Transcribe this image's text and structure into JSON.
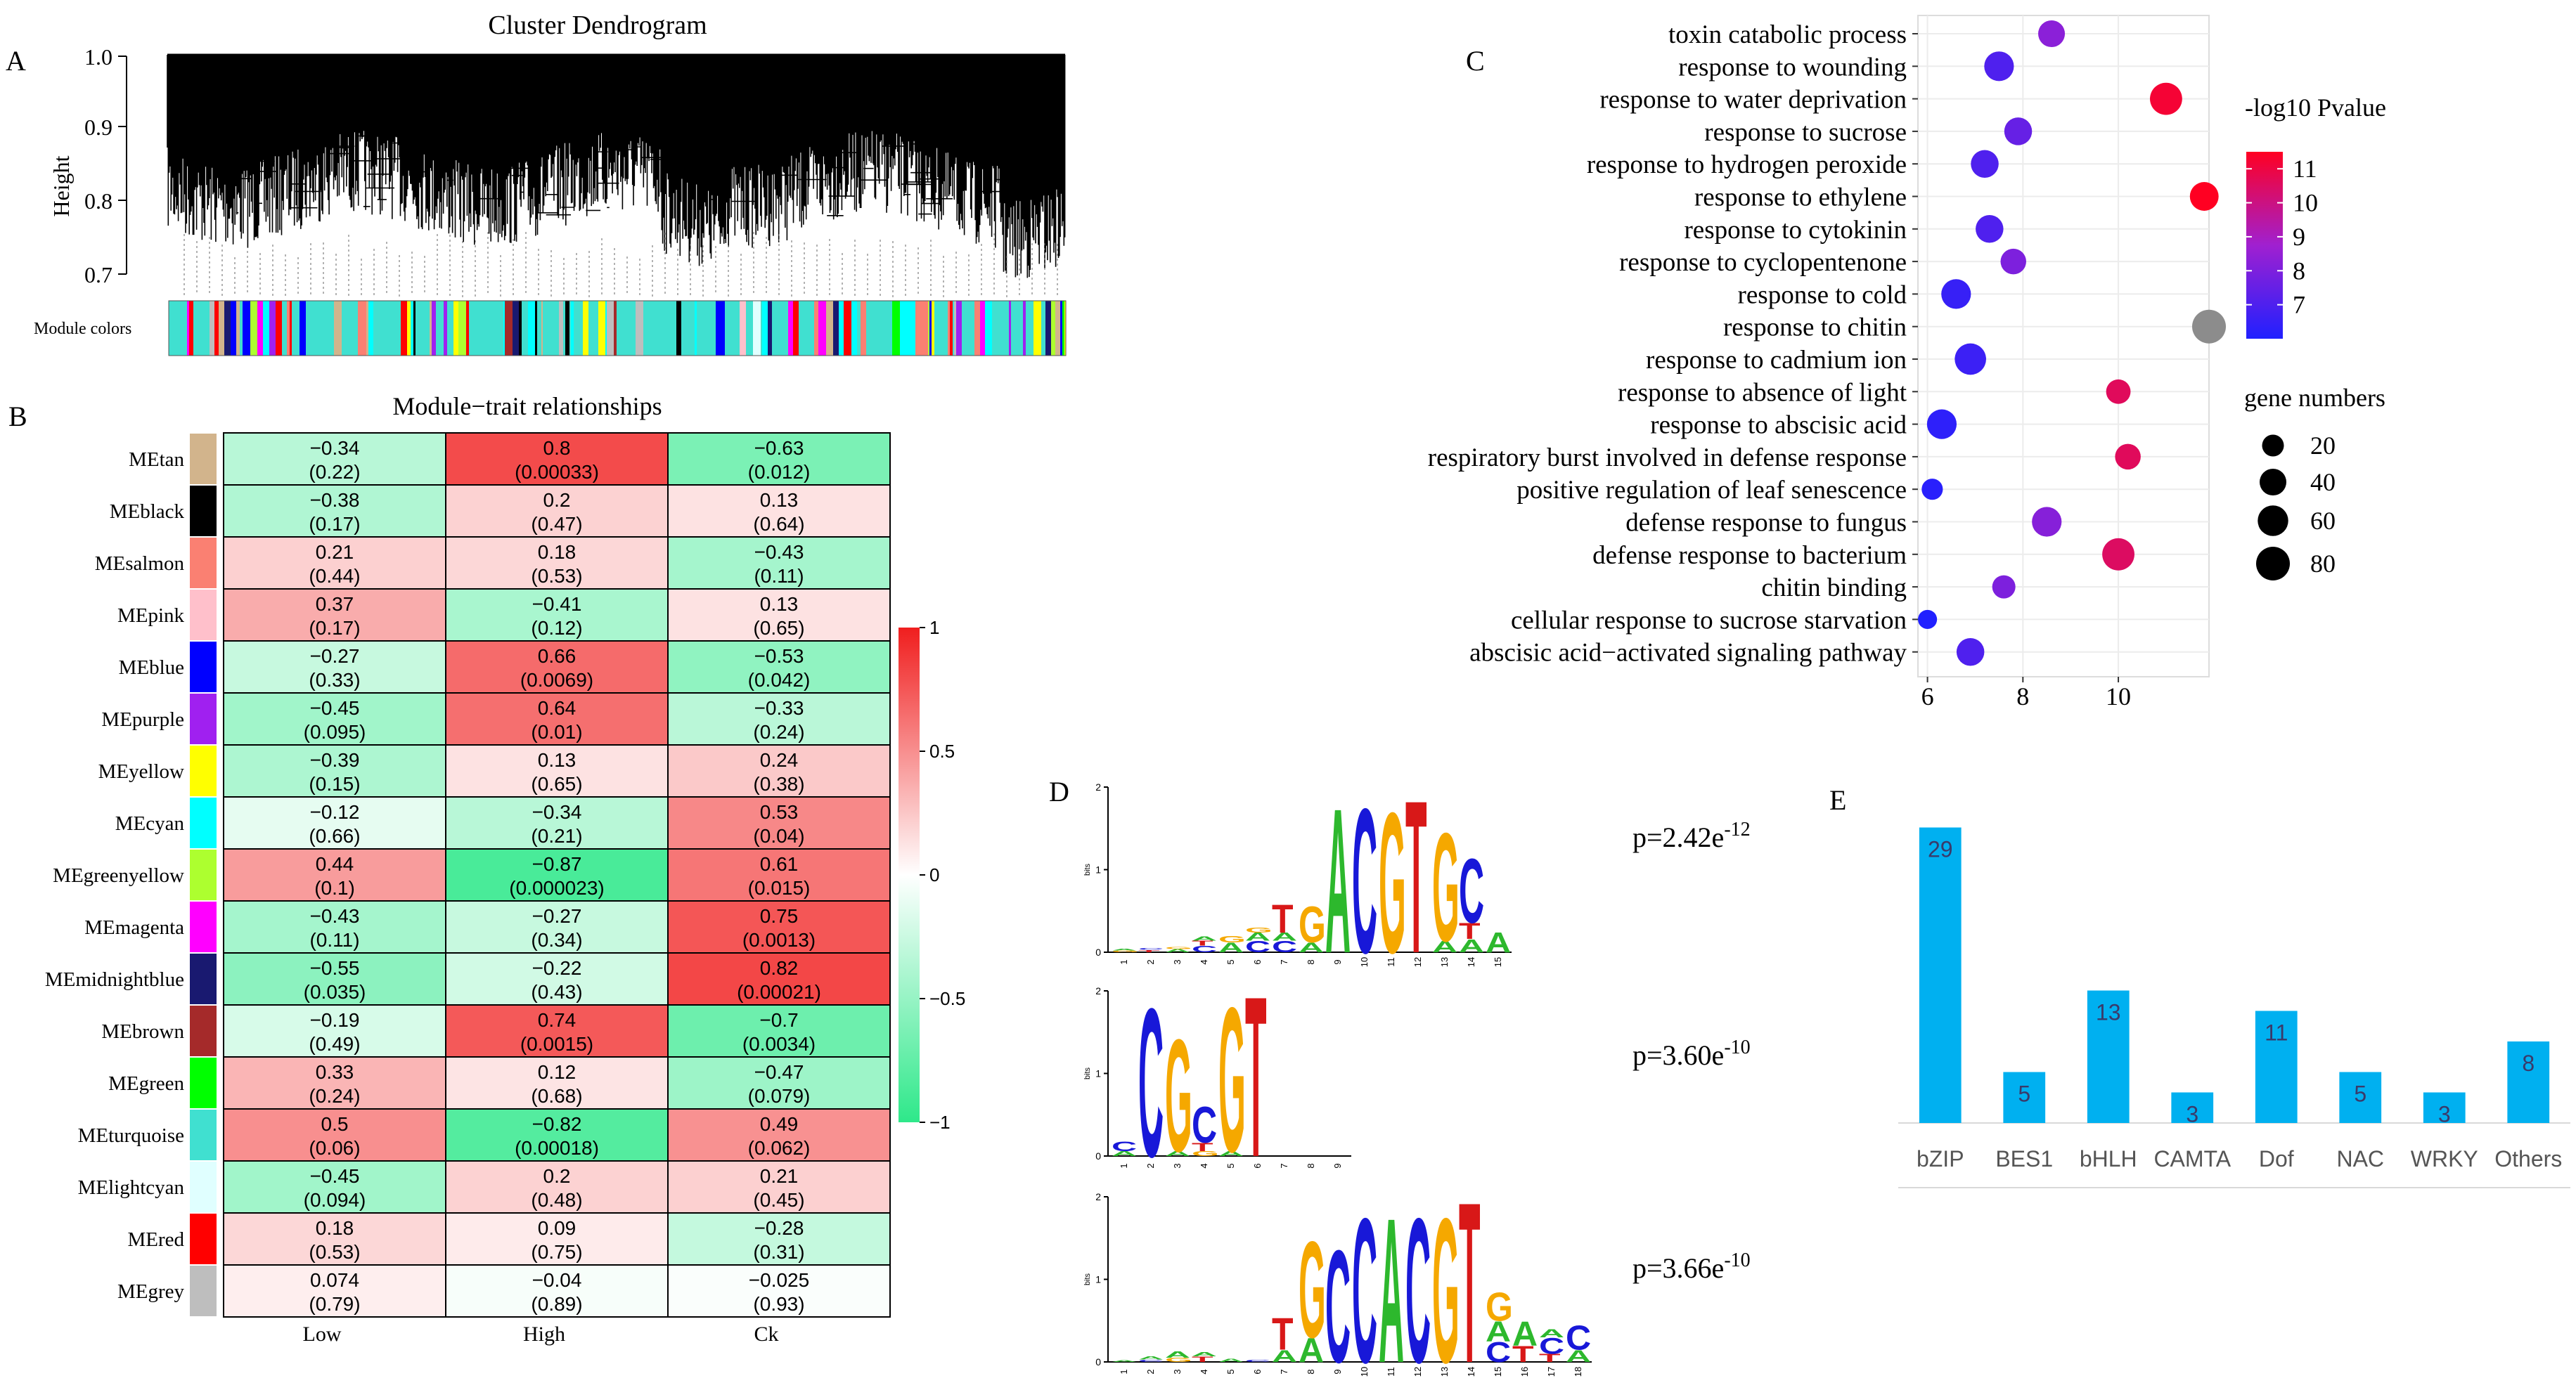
{
  "panels": {
    "a": {
      "label": "A",
      "title": "Cluster Dendrogram",
      "ylabel": "Height",
      "yticks": [
        "1.0",
        "0.9",
        "0.8",
        "0.7"
      ],
      "module_colors_label": "Module colors"
    },
    "b": {
      "label": "B",
      "title": "Module−trait relationships"
    },
    "c": {
      "label": "C",
      "legend_color_title": "-log10 Pvalue",
      "legend_size_title": "gene numbers"
    },
    "d": {
      "label": "D"
    },
    "e": {
      "label": "E"
    }
  },
  "colors": {
    "heat_low": "#2ee88a",
    "heat_mid": "#ffffff",
    "heat_high": "#f01e1e",
    "dot_low": "#2020ff",
    "dot_high": "#ff0022",
    "dot_grey": "#8c8c8c",
    "bar": "#00b0f0",
    "bar_label": "#3a3a6a",
    "dna_A": "#2db82d",
    "dna_C": "#1818d8",
    "dna_G": "#f5a800",
    "dna_T": "#d81818"
  },
  "chart_data": [
    {
      "type": "heatmap",
      "title": "Module−trait relationships",
      "columns": [
        "Low",
        "High",
        "Ck"
      ],
      "rows": [
        {
          "name": "MEtan",
          "color": "#d2b48c",
          "values": [
            "−0.34",
            "0.8",
            "−0.63"
          ],
          "numeric": [
            -0.34,
            0.8,
            -0.63
          ],
          "pvalues": [
            "(0.22)",
            "(0.00033)",
            "(0.012)"
          ]
        },
        {
          "name": "MEblack",
          "color": "#000000",
          "values": [
            "−0.38",
            "0.2",
            "0.13"
          ],
          "numeric": [
            -0.38,
            0.2,
            0.13
          ],
          "pvalues": [
            "(0.17)",
            "(0.47)",
            "(0.64)"
          ]
        },
        {
          "name": "MEsalmon",
          "color": "#fa8072",
          "values": [
            "0.21",
            "0.18",
            "−0.43"
          ],
          "numeric": [
            0.21,
            0.18,
            -0.43
          ],
          "pvalues": [
            "(0.44)",
            "(0.53)",
            "(0.11)"
          ]
        },
        {
          "name": "MEpink",
          "color": "#ffc0cb",
          "values": [
            "0.37",
            "−0.41",
            "0.13"
          ],
          "numeric": [
            0.37,
            -0.41,
            0.13
          ],
          "pvalues": [
            "(0.17)",
            "(0.12)",
            "(0.65)"
          ]
        },
        {
          "name": "MEblue",
          "color": "#0000ff",
          "values": [
            "−0.27",
            "0.66",
            "−0.53"
          ],
          "numeric": [
            -0.27,
            0.66,
            -0.53
          ],
          "pvalues": [
            "(0.33)",
            "(0.0069)",
            "(0.042)"
          ]
        },
        {
          "name": "MEpurple",
          "color": "#a020f0",
          "values": [
            "−0.45",
            "0.64",
            "−0.33"
          ],
          "numeric": [
            -0.45,
            0.64,
            -0.33
          ],
          "pvalues": [
            "(0.095)",
            "(0.01)",
            "(0.24)"
          ]
        },
        {
          "name": "MEyellow",
          "color": "#ffff00",
          "values": [
            "−0.39",
            "0.13",
            "0.24"
          ],
          "numeric": [
            -0.39,
            0.13,
            0.24
          ],
          "pvalues": [
            "(0.15)",
            "(0.65)",
            "(0.38)"
          ]
        },
        {
          "name": "MEcyan",
          "color": "#00ffff",
          "values": [
            "−0.12",
            "−0.34",
            "0.53"
          ],
          "numeric": [
            -0.12,
            -0.34,
            0.53
          ],
          "pvalues": [
            "(0.66)",
            "(0.21)",
            "(0.04)"
          ]
        },
        {
          "name": "MEgreenyellow",
          "color": "#adff2f",
          "values": [
            "0.44",
            "−0.87",
            "0.61"
          ],
          "numeric": [
            0.44,
            -0.87,
            0.61
          ],
          "pvalues": [
            "(0.1)",
            "(0.000023)",
            "(0.015)"
          ]
        },
        {
          "name": "MEmagenta",
          "color": "#ff00ff",
          "values": [
            "−0.43",
            "−0.27",
            "0.75"
          ],
          "numeric": [
            -0.43,
            -0.27,
            0.75
          ],
          "pvalues": [
            "(0.11)",
            "(0.34)",
            "(0.0013)"
          ]
        },
        {
          "name": "MEmidnightblue",
          "color": "#191970",
          "values": [
            "−0.55",
            "−0.22",
            "0.82"
          ],
          "numeric": [
            -0.55,
            -0.22,
            0.82
          ],
          "pvalues": [
            "(0.035)",
            "(0.43)",
            "(0.00021)"
          ]
        },
        {
          "name": "MEbrown",
          "color": "#a52a2a",
          "values": [
            "−0.19",
            "0.74",
            "−0.7"
          ],
          "numeric": [
            -0.19,
            0.74,
            -0.7
          ],
          "pvalues": [
            "(0.49)",
            "(0.0015)",
            "(0.0034)"
          ]
        },
        {
          "name": "MEgreen",
          "color": "#00ff00",
          "values": [
            "0.33",
            "0.12",
            "−0.47"
          ],
          "numeric": [
            0.33,
            0.12,
            -0.47
          ],
          "pvalues": [
            "(0.24)",
            "(0.68)",
            "(0.079)"
          ]
        },
        {
          "name": "MEturquoise",
          "color": "#40e0d0",
          "values": [
            "0.5",
            "−0.82",
            "0.49"
          ],
          "numeric": [
            0.5,
            -0.82,
            0.49
          ],
          "pvalues": [
            "(0.06)",
            "(0.00018)",
            "(0.062)"
          ]
        },
        {
          "name": "MElightcyan",
          "color": "#e0ffff",
          "values": [
            "−0.45",
            "0.2",
            "0.21"
          ],
          "numeric": [
            -0.45,
            0.2,
            0.21
          ],
          "pvalues": [
            "(0.094)",
            "(0.48)",
            "(0.45)"
          ]
        },
        {
          "name": "MEred",
          "color": "#ff0000",
          "values": [
            "0.18",
            "0.09",
            "−0.28"
          ],
          "numeric": [
            0.18,
            0.09,
            -0.28
          ],
          "pvalues": [
            "(0.53)",
            "(0.75)",
            "(0.31)"
          ]
        },
        {
          "name": "MEgrey",
          "color": "#bebebe",
          "values": [
            "0.074",
            "−0.04",
            "−0.025"
          ],
          "numeric": [
            0.074,
            -0.04,
            -0.025
          ],
          "pvalues": [
            "(0.79)",
            "(0.89)",
            "(0.93)"
          ]
        }
      ],
      "colorbar": {
        "range": [
          -1,
          1
        ],
        "ticks": [
          "1",
          "0.5",
          "0",
          "−0.5",
          "−1"
        ]
      }
    },
    {
      "type": "scatter",
      "subtype": "dot_plot",
      "categories": [
        "toxin catabolic process",
        "response to wounding",
        "response to water deprivation",
        "response to sucrose",
        "response to hydrogen peroxide",
        "response to ethylene",
        "response to cytokinin",
        "response to cyclopentenone",
        "response to cold",
        "response to chitin",
        "response to cadmium ion",
        "response to absence of light",
        "response to abscisic acid",
        "respiratory burst involved in defense response",
        "positive regulation of leaf senescence",
        "defense response to fungus",
        "defense response to bacterium",
        "chitin binding",
        "cellular response to sucrose starvation",
        "abscisic acid−activated signaling pathway"
      ],
      "x": [
        8.6,
        7.5,
        11.0,
        7.9,
        7.2,
        11.8,
        7.3,
        7.8,
        6.6,
        11.9,
        6.9,
        10.0,
        6.3,
        10.2,
        6.1,
        8.5,
        10.0,
        7.6,
        6.0,
        6.9
      ],
      "size": [
        40,
        55,
        70,
        45,
        45,
        50,
        45,
        35,
        55,
        80,
        65,
        30,
        55,
        35,
        18,
        55,
        70,
        25,
        12,
        45
      ],
      "color_value": [
        8.3,
        7.0,
        11.2,
        7.5,
        7.0,
        11.6,
        7.0,
        8.0,
        6.5,
        null,
        6.6,
        10.6,
        6.3,
        10.6,
        6.2,
        8.2,
        10.5,
        8.0,
        6.0,
        7.0
      ],
      "xlim": [
        5.8,
        11.9
      ],
      "xticks": [
        "6",
        "8",
        "10"
      ],
      "xtick_values": [
        6,
        8,
        10
      ],
      "color_legend": {
        "title": "-log10 Pvalue",
        "range": [
          6,
          11.5
        ],
        "ticks": [
          "11",
          "10",
          "9",
          "8",
          "7"
        ],
        "tick_values": [
          11,
          10,
          9,
          8,
          7
        ]
      },
      "size_legend": {
        "title": "gene numbers",
        "ticks": [
          "20",
          "40",
          "60",
          "80"
        ],
        "tick_values": [
          20,
          40,
          60,
          80
        ]
      }
    },
    {
      "type": "other",
      "subtype": "sequence_logo",
      "ylabel": "bits",
      "motifs": [
        {
          "pvalue_base": "p=2.42e",
          "pvalue_exp": "-12",
          "yticks": [
            "2",
            "1",
            "0"
          ],
          "positions": [
            "1",
            "2",
            "3",
            "4",
            "5",
            "6",
            "7",
            "8",
            "9",
            "10",
            "11",
            "12",
            "13",
            "14",
            "15"
          ],
          "columns": [
            [
              [
                "G",
                0.02
              ],
              [
                "A",
                0.02
              ]
            ],
            [
              [
                "T",
                0.03
              ],
              [
                "C",
                0.02
              ]
            ],
            [
              [
                "A",
                0.04
              ],
              [
                "G",
                0.03
              ]
            ],
            [
              [
                "C",
                0.08
              ],
              [
                "T",
                0.06
              ],
              [
                "A",
                0.05
              ]
            ],
            [
              [
                "A",
                0.12
              ],
              [
                "G",
                0.08
              ]
            ],
            [
              [
                "C",
                0.14
              ],
              [
                "A",
                0.1
              ],
              [
                "G",
                0.06
              ]
            ],
            [
              [
                "C",
                0.14
              ],
              [
                "A",
                0.1
              ],
              [
                "T",
                0.35
              ]
            ],
            [
              [
                "A",
                0.12
              ],
              [
                "G",
                0.45
              ]
            ],
            [
              [
                "A",
                1.8
              ]
            ],
            [
              [
                "C",
                1.8
              ]
            ],
            [
              [
                "G",
                1.75
              ]
            ],
            [
              [
                "T",
                1.9
              ]
            ],
            [
              [
                "A",
                0.14
              ],
              [
                "G",
                1.35
              ]
            ],
            [
              [
                "A",
                0.16
              ],
              [
                "T",
                0.2
              ],
              [
                "C",
                0.8
              ]
            ],
            [
              [
                "A",
                0.25
              ]
            ]
          ]
        },
        {
          "pvalue_base": "p=3.60e",
          "pvalue_exp": "-10",
          "yticks": [
            "2",
            "1",
            "0"
          ],
          "positions": [
            "1",
            "2",
            "3",
            "4",
            "5",
            "6",
            "7",
            "8",
            "9"
          ],
          "columns": [
            [
              [
                "A",
                0.06
              ],
              [
                "C",
                0.12
              ]
            ],
            [
              [
                "C",
                1.85
              ]
            ],
            [
              [
                "A",
                0.06
              ],
              [
                "G",
                1.4
              ]
            ],
            [
              [
                "G",
                0.06
              ],
              [
                "T",
                0.1
              ],
              [
                "C",
                0.45
              ]
            ],
            [
              [
                "A",
                0.06
              ],
              [
                "G",
                1.8
              ]
            ],
            [
              [
                "T",
                2.0
              ]
            ],
            [],
            [],
            []
          ]
        },
        {
          "pvalue_base": "p=3.66e",
          "pvalue_exp": "-10",
          "yticks": [
            "2",
            "1",
            "0"
          ],
          "positions": [
            "1",
            "2",
            "3",
            "4",
            "5",
            "6",
            "7",
            "8",
            "9",
            "10",
            "11",
            "12",
            "13",
            "14",
            "15",
            "16",
            "17",
            "18"
          ],
          "columns": [
            [
              [
                "A",
                0.02
              ]
            ],
            [
              [
                "C",
                0.03
              ],
              [
                "A",
                0.04
              ]
            ],
            [
              [
                "G",
                0.05
              ],
              [
                "A",
                0.08
              ]
            ],
            [
              [
                "T",
                0.07
              ],
              [
                "A",
                0.05
              ]
            ],
            [
              [
                "A",
                0.04
              ]
            ],
            [
              [
                "C",
                0.03
              ]
            ],
            [
              [
                "A",
                0.15
              ],
              [
                "T",
                0.4
              ]
            ],
            [
              [
                "A",
                0.3
              ],
              [
                "G",
                1.2
              ]
            ],
            [
              [
                "C",
                1.4
              ]
            ],
            [
              [
                "C",
                1.8
              ]
            ],
            [
              [
                "A",
                1.8
              ]
            ],
            [
              [
                "C",
                1.8
              ]
            ],
            [
              [
                "G",
                1.8
              ]
            ],
            [
              [
                "T",
                2.0
              ]
            ],
            [
              [
                "C",
                0.25
              ],
              [
                "A",
                0.25
              ],
              [
                "G",
                0.35
              ]
            ],
            [
              [
                "T",
                0.2
              ],
              [
                "A",
                0.3
              ]
            ],
            [
              [
                "T",
                0.1
              ],
              [
                "C",
                0.2
              ],
              [
                "A",
                0.1
              ]
            ],
            [
              [
                "A",
                0.15
              ],
              [
                "C",
                0.3
              ]
            ]
          ]
        }
      ]
    },
    {
      "type": "bar",
      "categories": [
        "bZIP",
        "BES1",
        "bHLH",
        "CAMTA",
        "Dof",
        "NAC",
        "WRKY",
        "Others"
      ],
      "values": [
        29,
        5,
        13,
        3,
        11,
        5,
        3,
        8
      ],
      "value_labels": [
        "29",
        "5",
        "13",
        "3",
        "11",
        "5",
        "3",
        "8"
      ],
      "ylim": [
        0,
        30
      ]
    }
  ]
}
